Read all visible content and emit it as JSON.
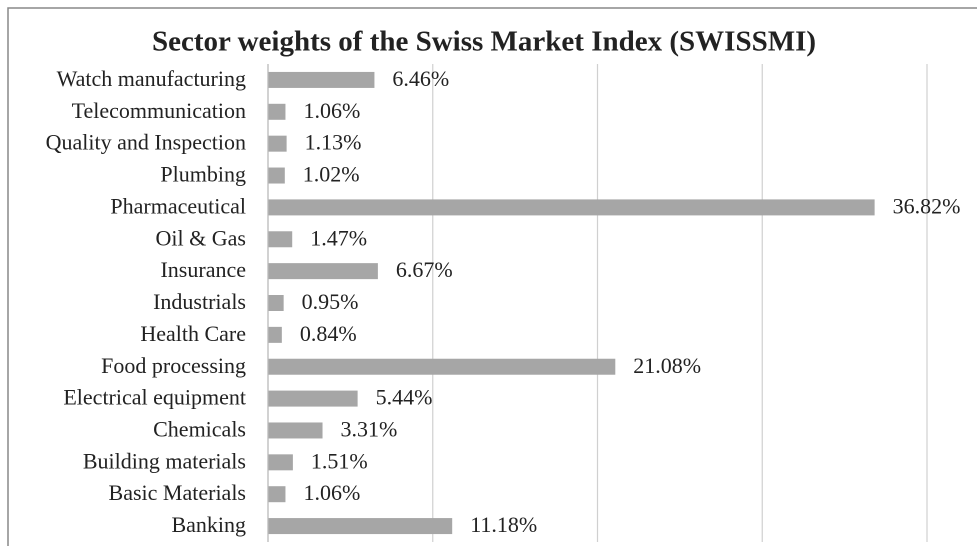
{
  "chart_data": {
    "type": "barh",
    "title": "Sector weights of the Swiss Market Index (SWISSMI)",
    "categories": [
      "Watch manufacturing",
      "Telecommunication",
      "Quality and Inspection",
      "Plumbing",
      "Pharmaceutical",
      "Oil & Gas",
      "Insurance",
      "Industrials",
      "Health Care",
      "Food processing",
      "Electrical equipment",
      "Chemicals",
      "Building materials",
      "Basic Materials",
      "Banking"
    ],
    "values": [
      6.46,
      1.06,
      1.13,
      1.02,
      36.82,
      1.47,
      6.67,
      0.95,
      0.84,
      21.08,
      5.44,
      3.31,
      1.51,
      1.06,
      11.18
    ],
    "value_labels": [
      "6.46%",
      "1.06%",
      "1.13%",
      "1.02%",
      "36.82%",
      "1.47%",
      "6.67%",
      "0.95%",
      "0.84%",
      "21.08%",
      "5.44%",
      "3.31%",
      "1.51%",
      "1.06%",
      "11.18%"
    ],
    "color": "#a6a6a6",
    "xlim": [
      0,
      40
    ],
    "xticks": [
      0,
      10,
      20,
      30,
      40
    ],
    "grid": true
  }
}
